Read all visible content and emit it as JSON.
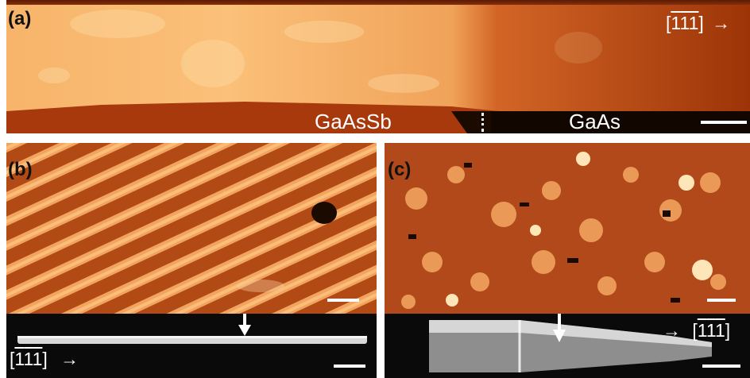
{
  "panels": {
    "a": {
      "label": "(a)",
      "direction_prefix": "[",
      "direction_digits": [
        "1",
        "1",
        "1"
      ],
      "direction_suffix": "]",
      "direction_arrow": "→",
      "left_material": "GaAsSb",
      "right_material": "GaAs"
    },
    "b": {
      "label": "(b)",
      "direction_prefix": "[",
      "direction_digits": [
        "1",
        "1",
        "1"
      ],
      "direction_suffix": "]",
      "direction_arrow": "→"
    },
    "c": {
      "label": "(c)",
      "direction_prefix": "[",
      "direction_digits": [
        "1",
        "1",
        "1"
      ],
      "direction_suffix": "]",
      "direction_arrow": "→"
    }
  },
  "colors": {
    "afm_dark": "#1a0a00",
    "afm_mid": "#c1511a",
    "afm_bright": "#ffd9a0",
    "sem_background": "#0a0a0a",
    "scale_bar": "#ffffff"
  }
}
